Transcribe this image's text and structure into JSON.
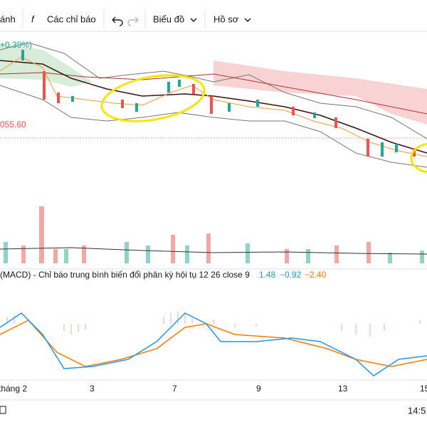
{
  "toolbar": {
    "items": [
      "ánh",
      "Các chỉ báo",
      "Biểu đồ",
      "Hồ sơ"
    ]
  },
  "price_pane": {
    "change_label": "+0.39%)",
    "price_label": "055.60"
  },
  "macd_pane": {
    "title": "(MACD) - Chỉ báo trung bình biến đổi phân kỳ hội tụ 12 26 close 9",
    "values": [
      "1.48",
      "−0.92",
      "−2.40"
    ]
  },
  "time_axis": {
    "labels": [
      "tháng 2",
      "3",
      "7",
      "9",
      "13",
      "15"
    ]
  },
  "status_bar": {
    "time": "14:5"
  }
}
